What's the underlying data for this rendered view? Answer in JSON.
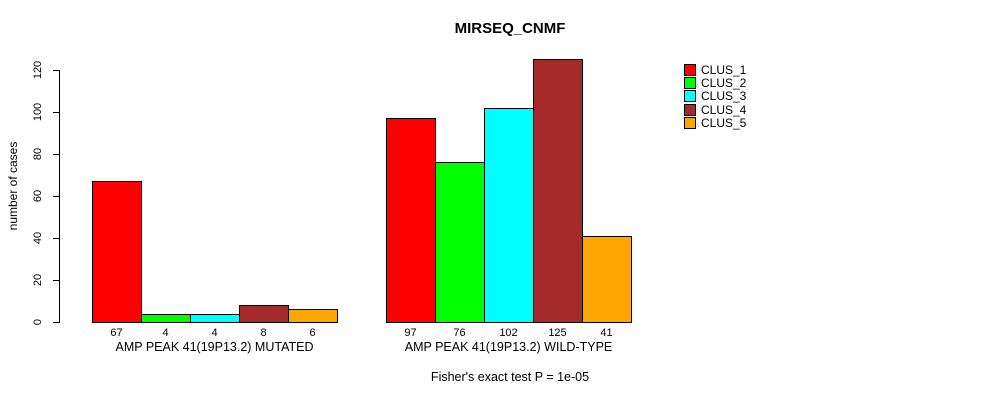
{
  "chart_data": {
    "type": "bar",
    "title": "MIRSEQ_CNMF",
    "ylabel": "number of cases",
    "xlabel": "",
    "ylim": [
      0,
      130
    ],
    "yticks": [
      0,
      20,
      40,
      60,
      80,
      100,
      120
    ],
    "grid": false,
    "legend_position": "top-right",
    "categories": [
      "AMP PEAK 41(19P13.2) MUTATED",
      "AMP PEAK 41(19P13.2) WILD-TYPE"
    ],
    "series": [
      {
        "name": "CLUS_1",
        "color": "#ff0000",
        "values": [
          67,
          97
        ]
      },
      {
        "name": "CLUS_2",
        "color": "#00ff00",
        "values": [
          4,
          76
        ]
      },
      {
        "name": "CLUS_3",
        "color": "#00ffff",
        "values": [
          4,
          102
        ]
      },
      {
        "name": "CLUS_4",
        "color": "#a52a2a",
        "values": [
          8,
          125
        ]
      },
      {
        "name": "CLUS_5",
        "color": "#ffa500",
        "values": [
          6,
          41
        ]
      }
    ],
    "annotation": "Fisher's exact test P = 1e-05"
  }
}
